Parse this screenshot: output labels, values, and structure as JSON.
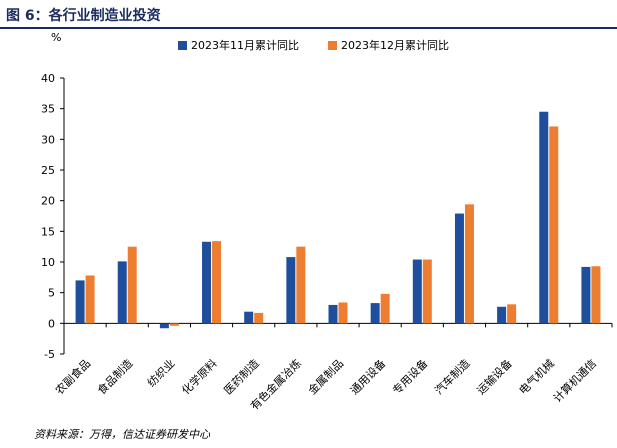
{
  "title": "图 6：各行业制造业投资",
  "source": "资料来源：万得，信达证券研发中心",
  "colors": {
    "series1": "#1f4e9c",
    "series2": "#ed7d31",
    "title": "#1a2b5e"
  },
  "chart_data": {
    "type": "bar",
    "ylabel": "%",
    "ylim": [
      -5,
      40
    ],
    "yticks": [
      -5,
      0,
      5,
      10,
      15,
      20,
      25,
      30,
      35,
      40
    ],
    "grid": false,
    "legend_position": "top-center",
    "categories": [
      "农副食品",
      "食品制造",
      "纺织业",
      "化学原料",
      "医药制造",
      "有色金属冶炼",
      "金属制品",
      "通用设备",
      "专用设备",
      "汽车制造",
      "运输设备",
      "电气机械",
      "计算机通信"
    ],
    "series": [
      {
        "name": "2023年11月累计同比",
        "values": [
          7.0,
          10.1,
          -0.8,
          13.3,
          1.9,
          10.8,
          3.0,
          3.3,
          10.4,
          17.9,
          2.7,
          34.5,
          9.2
        ]
      },
      {
        "name": "2023年12月累计同比",
        "values": [
          7.8,
          12.5,
          -0.4,
          13.4,
          1.7,
          12.5,
          3.4,
          4.8,
          10.4,
          19.4,
          3.1,
          32.1,
          9.3
        ]
      }
    ]
  }
}
